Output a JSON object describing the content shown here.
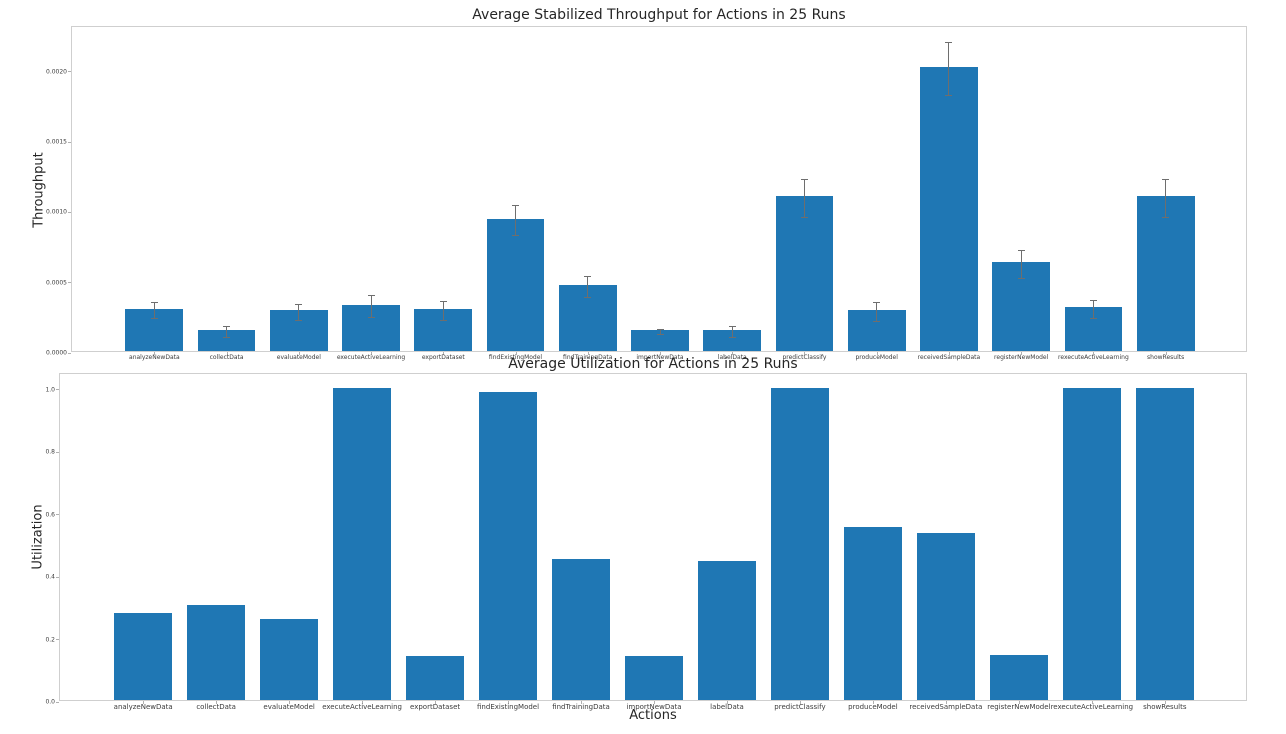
{
  "figure": {
    "background": "#ffffff",
    "bar_color": "#1f77b4",
    "spine_color": "#cfcfcf",
    "error_color": "#6e6e6e"
  },
  "chart_data": [
    {
      "type": "bar",
      "title": "Average Stabilized Throughput for Actions in 25 Runs",
      "xlabel": "",
      "ylabel": "Throughput",
      "grid": false,
      "legend": null,
      "categories": [
        "analyzeNewData",
        "collectData",
        "evaluateModel",
        "executeActiveLearning",
        "exportDataset",
        "findExistingModel",
        "findTrainingData",
        "importNewData",
        "labelData",
        "predictClassify",
        "produceModel",
        "receivedSampleData",
        "registerNewModel",
        "rexecuteActiveLearning",
        "showResults"
      ],
      "values": [
        0.0003,
        0.00015,
        0.00029,
        0.00033,
        0.0003,
        0.00094,
        0.00047,
        0.00015,
        0.00015,
        0.0011,
        0.00029,
        0.00202,
        0.00063,
        0.00031,
        0.0011
      ],
      "errors": [
        6e-05,
        4e-05,
        6e-05,
        8e-05,
        7e-05,
        0.00011,
        8e-05,
        2e-05,
        4e-05,
        0.00014,
        7e-05,
        0.00019,
        0.0001,
        7e-05,
        0.00014
      ],
      "ylim": [
        0,
        0.00232
      ],
      "yticks": [
        0.0,
        0.0005,
        0.001,
        0.0015,
        0.002
      ],
      "ytick_labels": [
        "0.0000",
        "0.0005",
        "0.0010",
        "0.0015",
        "0.0020"
      ]
    },
    {
      "type": "bar",
      "title": "Average Utilization for Actions in 25 Runs",
      "xlabel": "Actions",
      "ylabel": "Utilization",
      "grid": false,
      "legend": null,
      "categories": [
        "analyzeNewData",
        "collectData",
        "evaluateModel",
        "executeActiveLearning",
        "exportDataset",
        "findExistingModel",
        "findTrainingData",
        "importNewData",
        "labelData",
        "predictClassify",
        "produceModel",
        "receivedSampleData",
        "registerNewModel",
        "rexecuteActiveLearning",
        "showResults"
      ],
      "values": [
        0.28,
        0.305,
        0.26,
        1.0,
        0.14,
        0.985,
        0.45,
        0.14,
        0.445,
        1.0,
        0.555,
        0.535,
        0.145,
        1.0,
        1.0
      ],
      "errors": null,
      "ylim": [
        0,
        1.05
      ],
      "yticks": [
        0.0,
        0.2,
        0.4,
        0.6,
        0.8,
        1.0
      ],
      "ytick_labels": [
        "0.0",
        "0.2",
        "0.4",
        "0.6",
        "0.8",
        "1.0"
      ]
    }
  ]
}
